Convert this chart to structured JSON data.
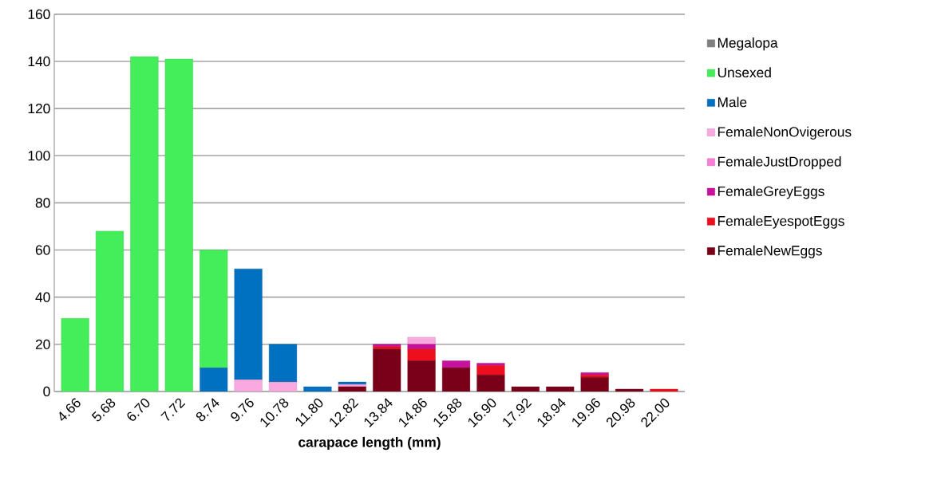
{
  "chart_data": {
    "type": "bar",
    "stacked": true,
    "xlabel": "carapace length (mm)",
    "categories": [
      "4.66",
      "5.68",
      "6.70",
      "7.72",
      "8.74",
      "9.76",
      "10.78",
      "11.80",
      "12.82",
      "13.84",
      "14.86",
      "15.88",
      "16.90",
      "17.92",
      "18.94",
      "19.96",
      "20.98",
      "22.00"
    ],
    "series": [
      {
        "name": "FemaleNewEggs",
        "color": "#7a0019",
        "values": [
          0,
          0,
          0,
          0,
          0,
          0,
          0,
          0,
          2,
          18,
          13,
          10,
          7,
          2,
          2,
          6,
          1,
          0
        ]
      },
      {
        "name": "FemaleEyespotEggs",
        "color": "#ee0f1e",
        "values": [
          0,
          0,
          0,
          0,
          0,
          0,
          0,
          0,
          0,
          1,
          5,
          0,
          4,
          0,
          0,
          1,
          0,
          1
        ]
      },
      {
        "name": "FemaleGreyEggs",
        "color": "#c6129c",
        "values": [
          0,
          0,
          0,
          0,
          0,
          0,
          0,
          0,
          0,
          1,
          2,
          3,
          1,
          0,
          0,
          1,
          0,
          0
        ]
      },
      {
        "name": "FemaleJustDropped",
        "color": "#f77fd8",
        "values": [
          0,
          0,
          0,
          0,
          0,
          0,
          0,
          0,
          0,
          0,
          0,
          0,
          0,
          0,
          0,
          0,
          0,
          0
        ]
      },
      {
        "name": "FemaleNonOvigerous",
        "color": "#f9a8e0",
        "values": [
          0,
          0,
          0,
          0,
          0,
          5,
          4,
          0,
          1,
          0,
          3,
          0,
          0,
          0,
          0,
          0,
          0,
          0
        ]
      },
      {
        "name": "Male",
        "color": "#0070c0",
        "values": [
          0,
          0,
          0,
          0,
          10,
          47,
          16,
          2,
          1,
          0,
          0,
          0,
          0,
          0,
          0,
          0,
          0,
          0
        ]
      },
      {
        "name": "Unsexed",
        "color": "#44ee5a",
        "values": [
          31,
          68,
          142,
          141,
          50,
          0,
          0,
          0,
          0,
          0,
          0,
          0,
          0,
          0,
          0,
          0,
          0,
          0
        ]
      },
      {
        "name": "Megalopa",
        "color": "#808080",
        "values": [
          0,
          0,
          0,
          0,
          0,
          0,
          0,
          0,
          0,
          0,
          0,
          0,
          0,
          0,
          0,
          0,
          0,
          0
        ]
      }
    ],
    "ylim": [
      0,
      160
    ],
    "yticks": [
      0,
      20,
      40,
      60,
      80,
      100,
      120,
      140,
      160
    ],
    "grid": "y",
    "legend": "right"
  }
}
